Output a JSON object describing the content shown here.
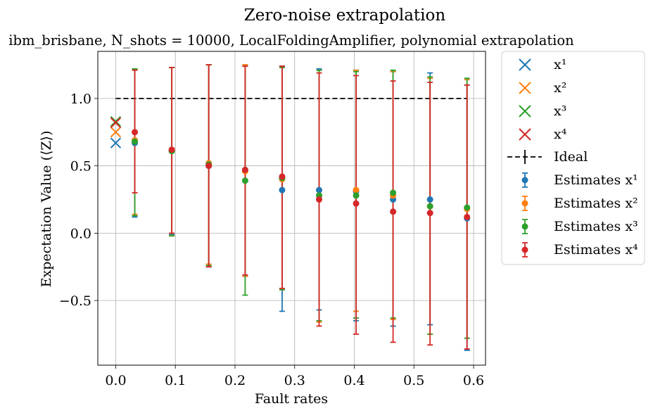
{
  "chart_data": {
    "type": "scatter",
    "title": "Zero-noise extrapolation",
    "subtitle": "ibm_brisbane, N_shots = 10000, LocalFoldingAmplifier, polynomial extrapolation",
    "xlabel": "Fault rates",
    "ylabel": "Expectation Value (⟨Z⟩)",
    "xlim": [
      -0.03,
      0.62
    ],
    "ylim": [
      -0.98,
      1.35
    ],
    "xticks": [
      {
        "value": 0.0,
        "label": "0.0"
      },
      {
        "value": 0.1,
        "label": "0.1"
      },
      {
        "value": 0.2,
        "label": "0.2"
      },
      {
        "value": 0.3,
        "label": "0.3"
      },
      {
        "value": 0.4,
        "label": "0.4"
      },
      {
        "value": 0.5,
        "label": "0.5"
      },
      {
        "value": 0.6,
        "label": "0.6"
      }
    ],
    "yticks": [
      {
        "value": -0.5,
        "label": "−0.5"
      },
      {
        "value": 0.0,
        "label": "0.0"
      },
      {
        "value": 0.5,
        "label": "0.5"
      },
      {
        "value": 1.0,
        "label": "1.0"
      }
    ],
    "grid": true,
    "legend_position": "outside right",
    "ideal": {
      "name": "Ideal",
      "x": [
        0.0,
        0.59
      ],
      "y": 1.0,
      "color": "#000000"
    },
    "x": [
      0.032,
      0.094,
      0.156,
      0.217,
      0.279,
      0.341,
      0.403,
      0.465,
      0.527,
      0.589
    ],
    "extrapolated": [
      {
        "name": "x¹",
        "sup": "1",
        "x": 0.0,
        "y": 0.67,
        "color": "#1f77b4"
      },
      {
        "name": "x²",
        "sup": "2",
        "x": 0.0,
        "y": 0.75,
        "color": "#ff7f0e"
      },
      {
        "name": "x³",
        "sup": "3",
        "x": 0.0,
        "y": 0.83,
        "color": "#2ca02c"
      },
      {
        "name": "x⁴",
        "sup": "4",
        "x": 0.0,
        "y": 0.82,
        "color": "#d62728"
      }
    ],
    "series": [
      {
        "name": "Estimates x¹",
        "sup": "1",
        "color": "#1f77b4",
        "values": [
          0.67,
          0.61,
          0.5,
          0.47,
          0.32,
          0.32,
          0.31,
          0.25,
          0.25,
          0.11
        ],
        "lower": [
          0.12,
          -0.01,
          -0.25,
          -0.32,
          -0.58,
          -0.57,
          -0.65,
          -0.69,
          -0.68,
          -0.87
        ],
        "upper": [
          1.22,
          1.23,
          1.25,
          1.25,
          1.24,
          1.22,
          1.21,
          1.2,
          1.19,
          1.1
        ]
      },
      {
        "name": "Estimates x²",
        "sup": "2",
        "color": "#ff7f0e",
        "values": [
          0.69,
          0.61,
          0.52,
          0.46,
          0.4,
          0.28,
          0.32,
          0.28,
          0.2,
          0.18
        ],
        "lower": [
          0.14,
          -0.02,
          -0.23,
          -0.32,
          -0.42,
          -0.66,
          -0.58,
          -0.64,
          -0.75,
          -0.78
        ],
        "upper": [
          1.22,
          1.23,
          1.25,
          1.25,
          1.23,
          1.21,
          1.21,
          1.2,
          1.15,
          1.14
        ]
      },
      {
        "name": "Estimates x³",
        "sup": "3",
        "color": "#2ca02c",
        "values": [
          0.68,
          0.61,
          0.51,
          0.39,
          0.41,
          0.28,
          0.28,
          0.3,
          0.2,
          0.19
        ],
        "lower": [
          0.13,
          -0.02,
          -0.24,
          -0.46,
          -0.42,
          -0.65,
          -0.63,
          -0.63,
          -0.75,
          -0.78
        ],
        "upper": [
          1.22,
          1.23,
          1.25,
          1.24,
          1.23,
          1.21,
          1.2,
          1.21,
          1.16,
          1.15
        ]
      },
      {
        "name": "Estimates x⁴",
        "sup": "4",
        "color": "#d62728",
        "values": [
          0.75,
          0.62,
          0.5,
          0.47,
          0.42,
          0.25,
          0.22,
          0.16,
          0.15,
          0.12
        ],
        "lower": [
          0.3,
          0.0,
          -0.25,
          -0.31,
          -0.41,
          -0.69,
          -0.75,
          -0.81,
          -0.83,
          -0.86
        ],
        "upper": [
          1.21,
          1.23,
          1.25,
          1.24,
          1.24,
          1.19,
          1.17,
          1.13,
          1.12,
          1.1
        ]
      }
    ]
  }
}
